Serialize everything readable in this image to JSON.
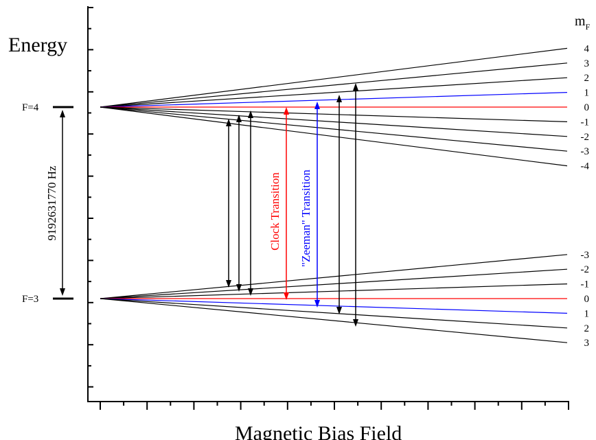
{
  "y_axis_label": "Energy",
  "x_axis_label": "Magnetic Bias Field",
  "mf_header": {
    "main": "m",
    "sub": "F"
  },
  "levels": {
    "upper": {
      "label": "F=4",
      "mf": [
        "4",
        "3",
        "2",
        "1",
        "0",
        "-1",
        "-2",
        "-3",
        "-4"
      ]
    },
    "lower": {
      "label": "F=3",
      "mf": [
        "-3",
        "-2",
        "-1",
        "0",
        "1",
        "2",
        "3"
      ]
    }
  },
  "splitting_label": "9192631770 Hz",
  "clock_transition": {
    "label": "Clock Transition",
    "color": "#ff0000"
  },
  "zeeman_transition": {
    "label": "\"Zeeman\" Transition",
    "color": "#0000ff"
  },
  "colors": {
    "default_line": "#000000",
    "clock_line": "#ff0000",
    "zeeman_line": "#0000ff"
  }
}
